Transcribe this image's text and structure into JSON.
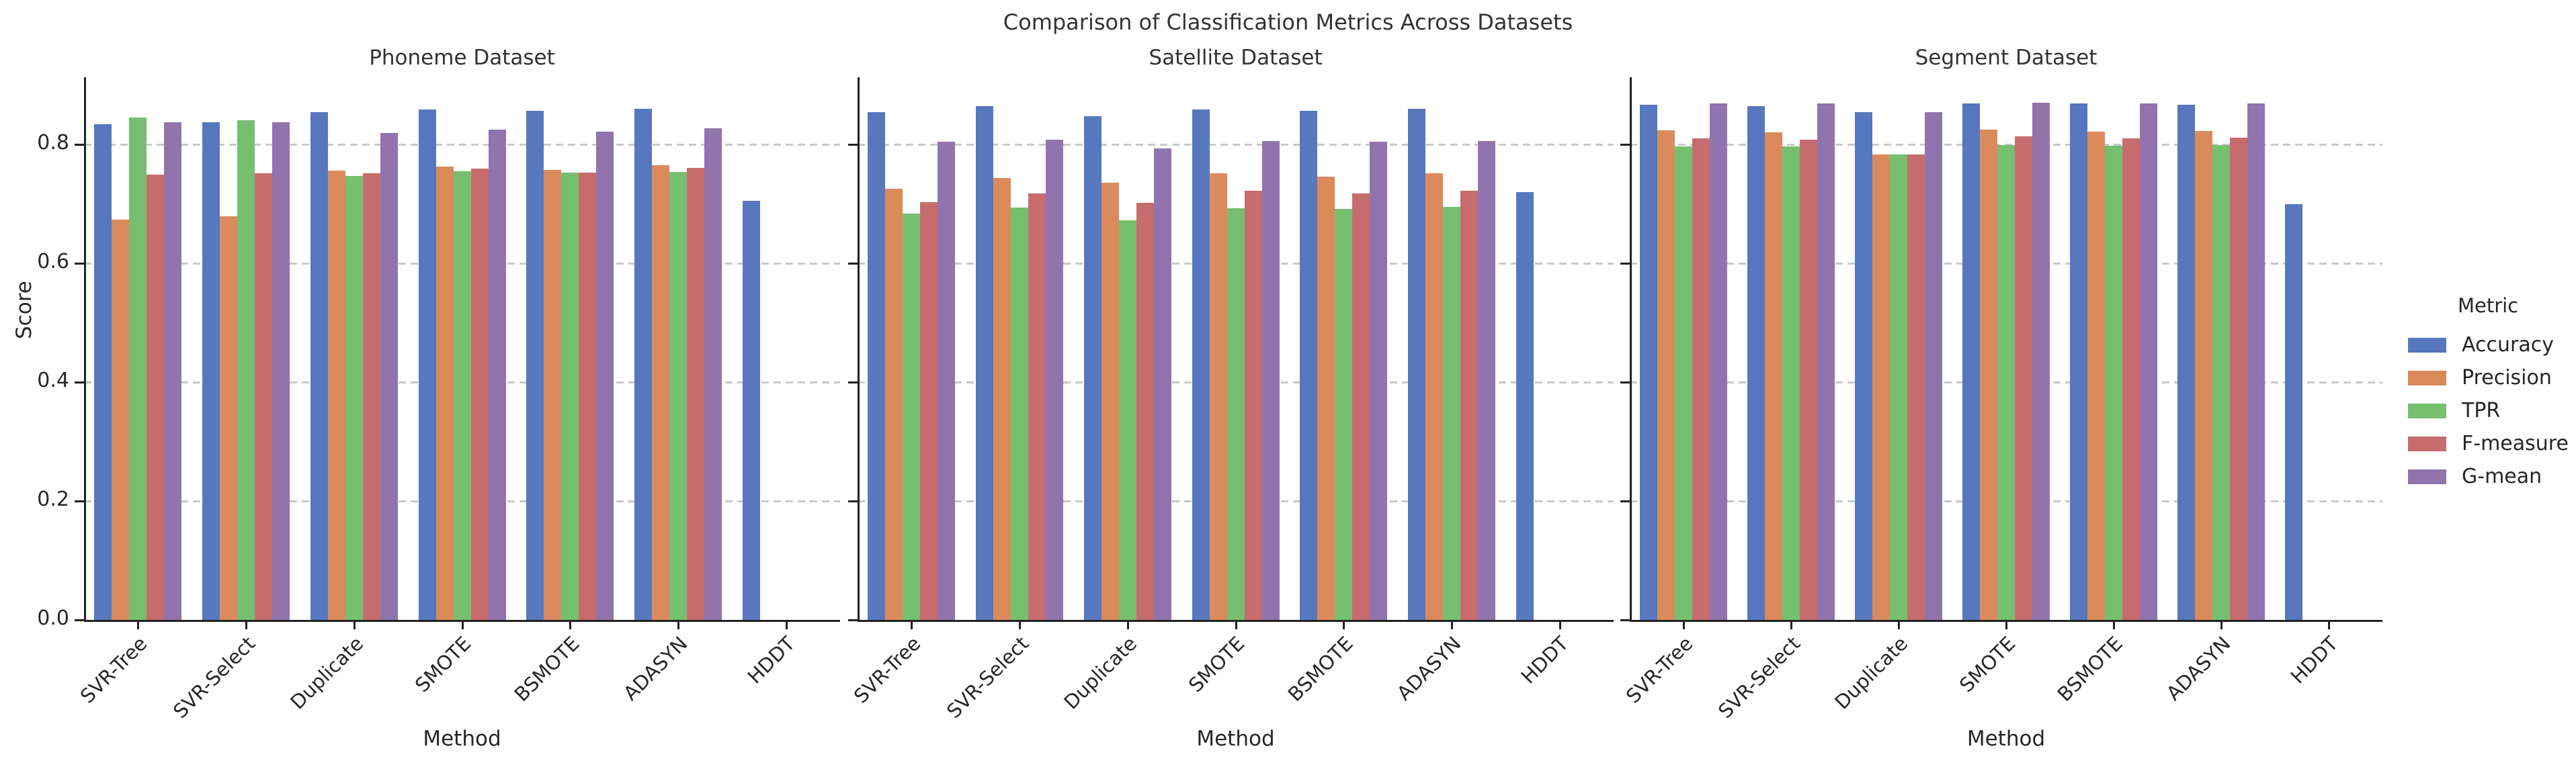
{
  "figure": {
    "title": "Comparison of Classification Metrics Across Datasets"
  },
  "axes": {
    "xlabel": "Method",
    "ylabel": "Score",
    "ytick_labels": [
      "0.0",
      "0.2",
      "0.4",
      "0.6",
      "0.8"
    ],
    "yticks": [
      0.0,
      0.2,
      0.4,
      0.6,
      0.8
    ],
    "ymax": 0.913,
    "grid": "horizontal-dashed"
  },
  "legend": {
    "title": "Metric",
    "entries": [
      {
        "label": "Accuracy",
        "color": "#5778be"
      },
      {
        "label": "Precision",
        "color": "#db8a5c"
      },
      {
        "label": "TPR",
        "color": "#76bf6f"
      },
      {
        "label": "F-measure",
        "color": "#c76c6c"
      },
      {
        "label": "G-mean",
        "color": "#9174ad"
      }
    ]
  },
  "chart_data": [
    {
      "type": "bar",
      "title": "Phoneme Dataset",
      "xlabel": "Method",
      "ylabel": "Score",
      "ylim": [
        0,
        0.913
      ],
      "categories": [
        "SVR-Tree",
        "SVR-Select",
        "Duplicate",
        "SMOTE",
        "BSMOTE",
        "ADASYN",
        "HDDT"
      ],
      "series": [
        {
          "name": "Accuracy",
          "color": "#5778be",
          "values": [
            0.834,
            0.837,
            0.854,
            0.859,
            0.856,
            0.86,
            0.705
          ]
        },
        {
          "name": "Precision",
          "color": "#db8a5c",
          "values": [
            0.673,
            0.679,
            0.756,
            0.763,
            0.757,
            0.765,
            0
          ]
        },
        {
          "name": "TPR",
          "color": "#76bf6f",
          "values": [
            0.845,
            0.841,
            0.747,
            0.755,
            0.752,
            0.754,
            0
          ]
        },
        {
          "name": "F-measure",
          "color": "#c76c6c",
          "values": [
            0.749,
            0.751,
            0.751,
            0.759,
            0.753,
            0.76,
            0
          ]
        },
        {
          "name": "G-mean",
          "color": "#9174ad",
          "values": [
            0.837,
            0.837,
            0.819,
            0.825,
            0.821,
            0.827,
            0
          ]
        }
      ]
    },
    {
      "type": "bar",
      "title": "Satellite Dataset",
      "xlabel": "Method",
      "ylabel": "Score",
      "ylim": [
        0,
        0.913
      ],
      "categories": [
        "SVR-Tree",
        "SVR-Select",
        "Duplicate",
        "SMOTE",
        "BSMOTE",
        "ADASYN",
        "HDDT"
      ],
      "series": [
        {
          "name": "Accuracy",
          "color": "#5778be",
          "values": [
            0.854,
            0.864,
            0.847,
            0.859,
            0.857,
            0.86,
            0.72
          ]
        },
        {
          "name": "Precision",
          "color": "#db8a5c",
          "values": [
            0.725,
            0.743,
            0.736,
            0.751,
            0.746,
            0.751,
            0
          ]
        },
        {
          "name": "TPR",
          "color": "#76bf6f",
          "values": [
            0.684,
            0.694,
            0.672,
            0.693,
            0.691,
            0.695,
            0
          ]
        },
        {
          "name": "F-measure",
          "color": "#c76c6c",
          "values": [
            0.703,
            0.718,
            0.702,
            0.722,
            0.718,
            0.722,
            0
          ]
        },
        {
          "name": "G-mean",
          "color": "#9174ad",
          "values": [
            0.804,
            0.808,
            0.793,
            0.806,
            0.804,
            0.806,
            0
          ]
        }
      ]
    },
    {
      "type": "bar",
      "title": "Segment Dataset",
      "xlabel": "Method",
      "ylabel": "Score",
      "ylim": [
        0,
        0.913
      ],
      "categories": [
        "SVR-Tree",
        "SVR-Select",
        "Duplicate",
        "SMOTE",
        "BSMOTE",
        "ADASYN",
        "HDDT"
      ],
      "series": [
        {
          "name": "Accuracy",
          "color": "#5778be",
          "values": [
            0.867,
            0.864,
            0.854,
            0.869,
            0.869,
            0.867,
            0.699
          ]
        },
        {
          "name": "Precision",
          "color": "#db8a5c",
          "values": [
            0.824,
            0.82,
            0.783,
            0.825,
            0.821,
            0.823,
            0
          ]
        },
        {
          "name": "TPR",
          "color": "#76bf6f",
          "values": [
            0.797,
            0.797,
            0.783,
            0.799,
            0.798,
            0.799,
            0
          ]
        },
        {
          "name": "F-measure",
          "color": "#c76c6c",
          "values": [
            0.81,
            0.808,
            0.783,
            0.813,
            0.81,
            0.811,
            0
          ]
        },
        {
          "name": "G-mean",
          "color": "#9174ad",
          "values": [
            0.869,
            0.869,
            0.854,
            0.87,
            0.869,
            0.869,
            0
          ]
        }
      ]
    }
  ]
}
